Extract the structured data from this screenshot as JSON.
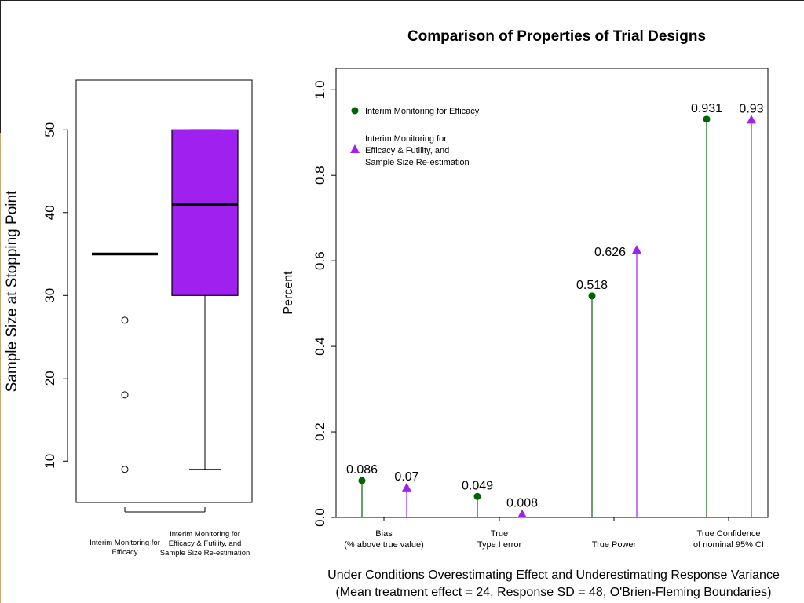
{
  "chart_data": [
    {
      "type": "box",
      "ylabel": "Sample Size at Stopping Point",
      "ylim": [
        5,
        56
      ],
      "yticks": [
        10,
        20,
        30,
        40,
        50
      ],
      "categories": [
        [
          "Interim Monitoring for",
          "Efficacy"
        ],
        [
          "Interim Monitoring for",
          "Efficacy & Futility, and",
          "Sample Size Re-estimation"
        ]
      ],
      "boxes": [
        {
          "q1": 35,
          "median": 35,
          "q3": 35,
          "whisker_low": 35,
          "whisker_high": 35,
          "outliers": [
            27,
            18,
            9
          ],
          "fill": "none"
        },
        {
          "q1": 30,
          "median": 41,
          "q3": 50,
          "whisker_low": 9,
          "whisker_high": 50,
          "outliers": [],
          "fill": "#a020f0"
        }
      ]
    },
    {
      "type": "lollipop",
      "title": "Comparison of Properties of Trial Designs",
      "ylabel": "Percent",
      "ylim": [
        0,
        1.05
      ],
      "yticks": [
        "0.0",
        "0.2",
        "0.4",
        "0.6",
        "0.8",
        "1.0"
      ],
      "categories": [
        [
          "Bias",
          "(% above true value)"
        ],
        [
          "True",
          "Type I error"
        ],
        [
          "True Power"
        ],
        [
          "True Confidence",
          "of nominal 95% CI"
        ]
      ],
      "series": [
        {
          "name": [
            "Interim Monitoring for Efficacy"
          ],
          "color": "#006400",
          "marker": "circle",
          "values": [
            0.086,
            0.049,
            0.518,
            0.931
          ],
          "labels": [
            "0.086",
            "0.049",
            "0.518",
            "0.931"
          ]
        },
        {
          "name": [
            "Interim Monitoring for",
            "Efficacy & Futility, and",
            "Sample Size Re-estimation"
          ],
          "color": "#a020f0",
          "marker": "triangle",
          "values": [
            0.07,
            0.008,
            0.626,
            0.93
          ],
          "labels": [
            "0.07",
            "0.008",
            "0.626",
            "0.93"
          ]
        }
      ],
      "legend": "top-left",
      "subtitle": [
        "Under Conditions Overestimating Effect and Underestimating Response Variance",
        "(Mean treatment effect = 24, Response SD = 48, O'Brien-Fleming Boundaries)"
      ]
    }
  ]
}
